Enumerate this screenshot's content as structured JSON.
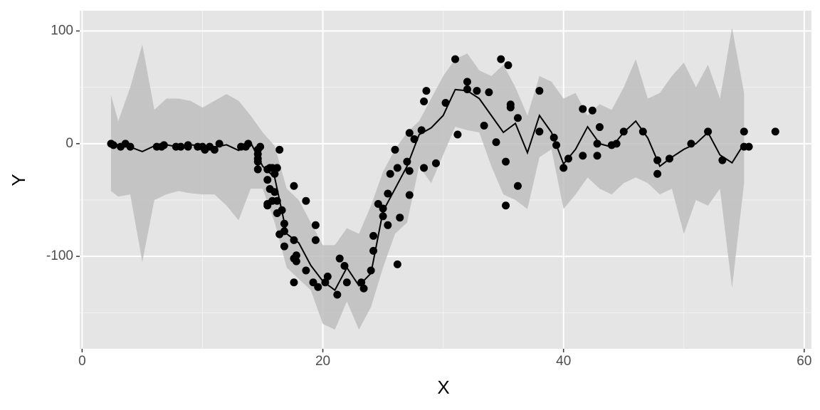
{
  "chart_data": {
    "type": "scatter",
    "xlabel": "X",
    "ylabel": "Y",
    "xlim": [
      -0.2,
      60.6
    ],
    "ylim": [
      -182,
      118
    ],
    "xticks": [
      0,
      20,
      40,
      60
    ],
    "yticks": [
      -100,
      0,
      100
    ],
    "xminor": [
      10,
      30,
      50
    ],
    "yminor": [
      -150,
      -50,
      50
    ],
    "grid": true,
    "points": {
      "color": "#000000",
      "x": [
        2.4,
        2.6,
        3.2,
        3.6,
        4.0,
        6.2,
        6.6,
        6.8,
        7.8,
        8.2,
        8.8,
        8.8,
        9.6,
        10.0,
        10.2,
        10.6,
        11.0,
        11.4,
        13.2,
        13.6,
        13.8,
        14.6,
        14.6,
        14.6,
        14.6,
        14.6,
        14.6,
        14.8,
        15.4,
        15.4,
        15.4,
        15.4,
        15.6,
        15.6,
        15.8,
        15.8,
        16.0,
        16.0,
        16.2,
        16.2,
        16.2,
        16.4,
        16.4,
        16.6,
        16.8,
        16.8,
        16.8,
        17.6,
        17.6,
        17.6,
        17.6,
        17.8,
        17.8,
        18.6,
        18.6,
        19.2,
        19.4,
        19.4,
        19.6,
        20.2,
        20.4,
        21.2,
        21.4,
        21.8,
        22.0,
        23.2,
        23.4,
        24.0,
        24.2,
        24.2,
        24.6,
        25.0,
        25.0,
        25.4,
        25.4,
        25.6,
        26.0,
        26.2,
        26.2,
        26.4,
        27.0,
        27.2,
        27.2,
        27.2,
        27.6,
        28.2,
        28.4,
        28.4,
        28.6,
        29.4,
        30.2,
        31.0,
        31.2,
        32.0,
        32.0,
        32.8,
        33.4,
        33.8,
        34.4,
        34.8,
        35.2,
        35.2,
        35.4,
        35.6,
        35.6,
        36.2,
        36.2,
        38.0,
        38.0,
        39.2,
        39.4,
        40.0,
        40.4,
        41.6,
        41.6,
        42.4,
        42.8,
        42.8,
        43.0,
        44.0,
        44.4,
        45.0,
        46.6,
        47.8,
        47.8,
        48.8,
        50.6,
        52.0,
        53.2,
        55.0,
        55.0,
        55.4,
        57.6
      ],
      "y": [
        0.0,
        -1.3,
        -2.7,
        0.0,
        -2.7,
        -2.7,
        -2.7,
        -1.3,
        -2.7,
        -2.7,
        -1.3,
        -2.7,
        -2.7,
        -2.7,
        -5.4,
        -2.7,
        -5.4,
        0.0,
        -2.7,
        -2.7,
        0.0,
        -13.3,
        -5.4,
        -5.4,
        -9.3,
        -16.0,
        -22.8,
        -2.7,
        -22.8,
        -32.1,
        -53.5,
        -54.9,
        -40.2,
        -21.5,
        -21.5,
        -50.8,
        -42.9,
        -26.8,
        -21.5,
        -50.8,
        -61.7,
        -5.4,
        -80.4,
        -59.0,
        -71.0,
        -91.1,
        -77.7,
        -37.5,
        -85.6,
        -123.1,
        -101.9,
        -99.1,
        -104.4,
        -112.5,
        -50.8,
        -123.1,
        -85.6,
        -72.3,
        -127.2,
        -123.1,
        -117.9,
        -134.0,
        -101.9,
        -108.4,
        -123.1,
        -123.1,
        -128.5,
        -112.5,
        -95.1,
        -81.8,
        -53.5,
        -64.4,
        -57.6,
        -72.3,
        -44.3,
        -26.8,
        -5.4,
        -107.1,
        -21.5,
        -65.6,
        -16.0,
        -45.6,
        -24.2,
        9.5,
        4.0,
        12.0,
        -21.5,
        37.5,
        46.9,
        -17.4,
        36.2,
        75.0,
        8.1,
        54.9,
        48.2,
        46.9,
        16.0,
        45.6,
        1.3,
        75.0,
        -16.0,
        -54.9,
        69.6,
        34.8,
        32.1,
        -37.5,
        22.8,
        46.9,
        10.7,
        5.4,
        -1.3,
        -21.5,
        -13.3,
        30.8,
        -10.7,
        29.4,
        0.0,
        -10.7,
        14.7,
        -1.3,
        0.0,
        10.7,
        10.7,
        -26.8,
        -14.7,
        -13.3,
        0.0,
        10.7,
        -14.7,
        -2.7,
        10.7,
        -2.7,
        10.7
      ]
    },
    "smooth": {
      "color": "#000000",
      "fill": "#bebebe",
      "x": [
        2.4,
        3,
        4,
        5,
        6,
        7,
        8,
        9,
        10,
        11,
        12,
        13,
        14,
        15,
        16,
        17,
        18,
        19,
        20,
        21,
        22,
        23,
        24,
        25,
        26,
        27,
        28,
        29,
        30,
        31,
        32,
        33,
        34,
        35,
        36,
        37,
        38,
        39,
        40,
        41,
        42,
        43,
        44,
        45,
        46,
        47,
        48,
        49,
        50,
        51,
        52,
        53,
        54,
        55
      ],
      "y": [
        0,
        -1,
        -3,
        -7,
        -2,
        -1,
        -3,
        -1,
        -2,
        -3,
        -1,
        -6,
        1,
        -20,
        -30,
        -80,
        -88,
        -108,
        -122,
        -130,
        -110,
        -126,
        -115,
        -60,
        -40,
        -20,
        8,
        14,
        25,
        48,
        47,
        40,
        25,
        10,
        18,
        -8,
        25,
        10,
        -18,
        -5,
        15,
        0,
        -3,
        10,
        20,
        5,
        -20,
        -12,
        -5,
        0,
        10,
        -10,
        -17,
        0
      ],
      "upper": [
        43,
        20,
        50,
        88,
        30,
        40,
        40,
        38,
        32,
        38,
        44,
        38,
        25,
        10,
        -2,
        -40,
        -50,
        -70,
        -90,
        -90,
        -75,
        -80,
        -55,
        -25,
        -5,
        10,
        20,
        40,
        60,
        75,
        80,
        65,
        60,
        70,
        50,
        25,
        60,
        55,
        40,
        45,
        25,
        35,
        30,
        50,
        75,
        40,
        45,
        60,
        72,
        50,
        70,
        40,
        103,
        45
      ],
      "lower": [
        -42,
        -47,
        -45,
        -105,
        -50,
        -45,
        -42,
        -44,
        -45,
        -45,
        -55,
        -68,
        -40,
        -40,
        -70,
        -110,
        -120,
        -130,
        -160,
        -165,
        -140,
        -165,
        -145,
        -110,
        -80,
        -70,
        -20,
        -35,
        -10,
        15,
        12,
        10,
        -20,
        -45,
        -50,
        -58,
        -12,
        -5,
        -58,
        -45,
        -30,
        -40,
        -45,
        -35,
        -30,
        -35,
        -45,
        -40,
        -80,
        -50,
        -55,
        -40,
        -128,
        -35
      ]
    }
  }
}
